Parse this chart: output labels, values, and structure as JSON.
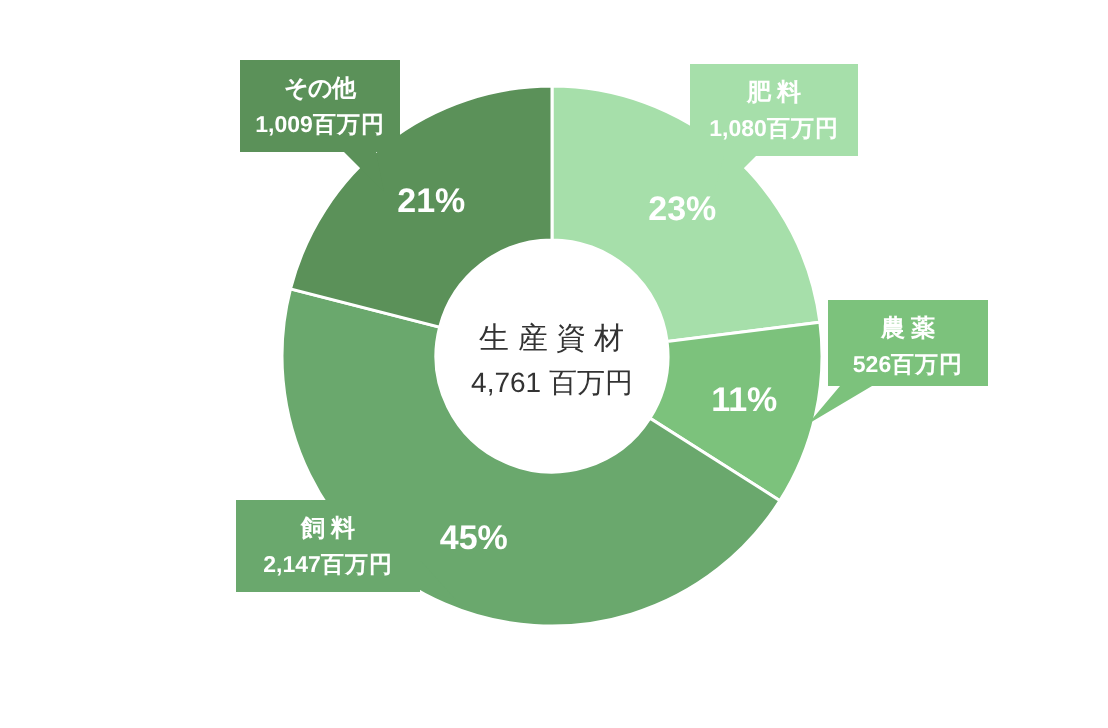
{
  "chart_data": {
    "type": "donut",
    "title": "生 産 資 材",
    "subtitle": "4,761 百万円",
    "categories": [
      "肥 料",
      "農 薬",
      "飼 料",
      "その他"
    ],
    "values": [
      23,
      11,
      45,
      21
    ],
    "colors": [
      "#a6dfaa",
      "#7cc27c",
      "#6aa86d",
      "#5b9159"
    ],
    "value_labels": [
      "23%",
      "11%",
      "45%",
      "21%"
    ],
    "annotations": [
      "1,080百万円",
      "526百万円",
      "2,147百万円",
      "1,009百万円"
    ]
  }
}
